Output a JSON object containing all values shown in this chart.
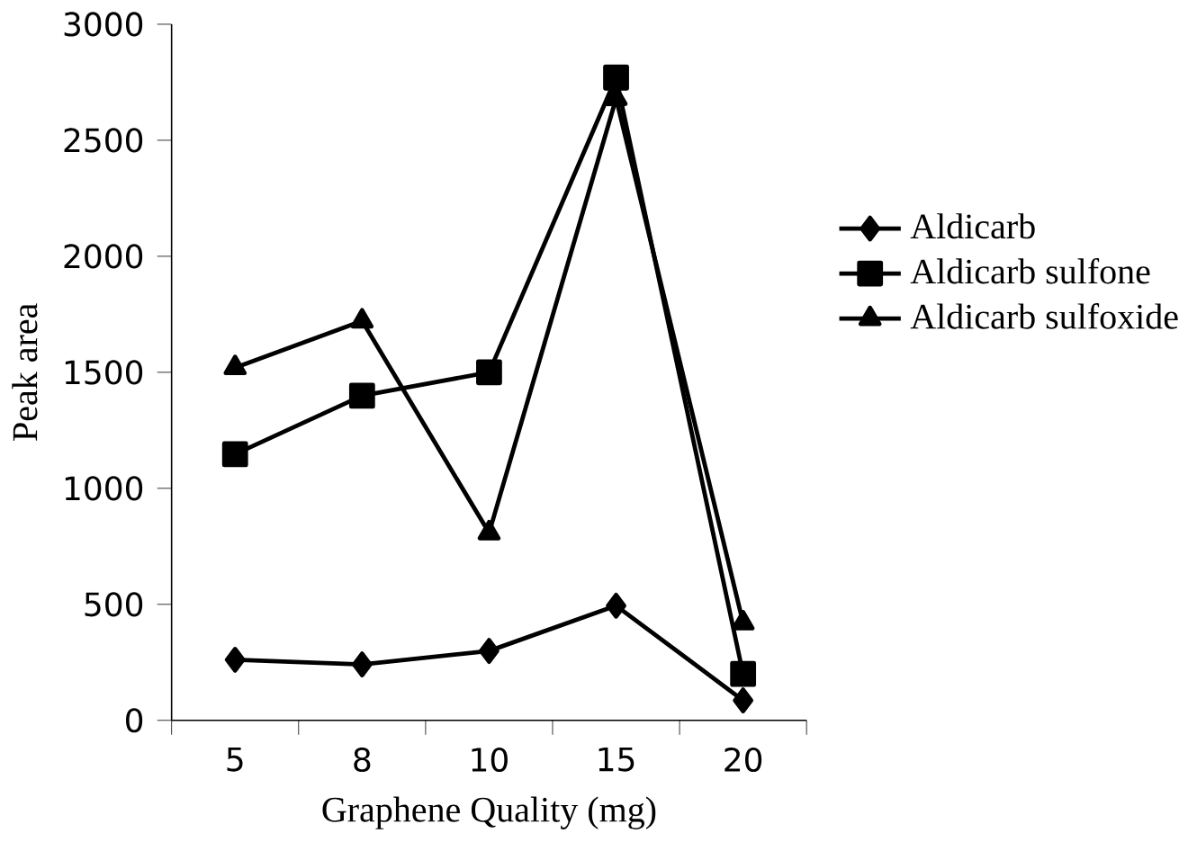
{
  "chart_data": {
    "type": "line",
    "xlabel": "Graphene Quality (mg)",
    "ylabel": "Peak area",
    "categories": [
      "5",
      "8",
      "10",
      "15",
      "20"
    ],
    "ylim": [
      0,
      3000
    ],
    "yticks": [
      0,
      500,
      1000,
      1500,
      2000,
      2500,
      3000
    ],
    "grid": false,
    "legend": "right",
    "line_style": "solid",
    "series": [
      {
        "name": "Aldicarb",
        "color": "#000000",
        "marker": "diamond",
        "values": [
          261,
          241,
          299,
          494,
          86
        ]
      },
      {
        "name": "Aldicarb sulfone",
        "color": "#000000",
        "marker": "square",
        "values": [
          1147,
          1399,
          1500,
          2770,
          200
        ]
      },
      {
        "name": "Aldicarb sulfoxide",
        "color": "#000000",
        "marker": "triangle",
        "values": [
          1520,
          1721,
          808,
          2680,
          420
        ]
      }
    ]
  }
}
